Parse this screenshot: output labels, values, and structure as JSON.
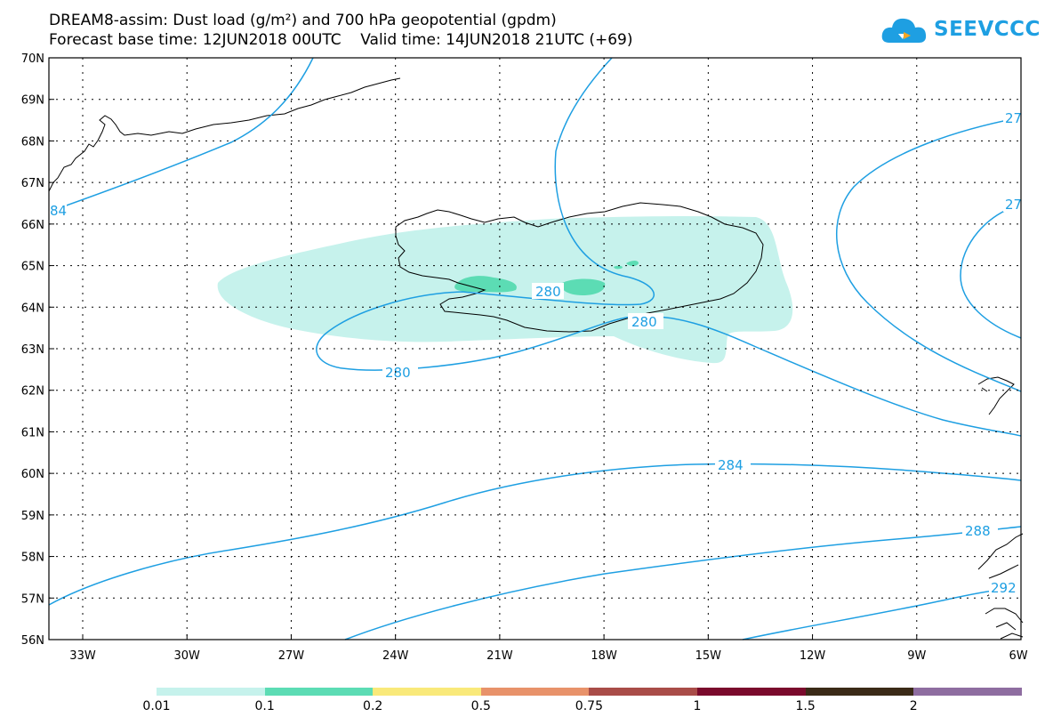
{
  "title": {
    "line1": "DREAM8-assim: Dust load (g/m²) and 700 hPa geopotential (gpdm)",
    "line2": "Forecast base time: 12JUN2018 00UTC    Valid time: 14JUN2018 21UTC (+69)"
  },
  "logo": {
    "text": "SEEVCCC",
    "icon": "cloud-icon",
    "color": "#1e9fe2"
  },
  "map": {
    "lat_labels": [
      "70N",
      "69N",
      "68N",
      "67N",
      "66N",
      "65N",
      "64N",
      "63N",
      "62N",
      "61N",
      "60N",
      "59N",
      "58N",
      "57N",
      "56N"
    ],
    "lon_labels": [
      "33W",
      "30W",
      "27W",
      "24W",
      "21W",
      "18W",
      "15W",
      "12W",
      "9W",
      "6W"
    ],
    "contour_labels": [
      {
        "id": "c280a",
        "text": "280"
      },
      {
        "id": "c280b",
        "text": "280"
      },
      {
        "id": "c280c",
        "text": "280"
      },
      {
        "id": "c284a",
        "text": "284"
      },
      {
        "id": "c284b",
        "text": "84"
      },
      {
        "id": "c288a",
        "text": "288"
      },
      {
        "id": "c27a",
        "text": "27"
      },
      {
        "id": "c27b",
        "text": "27"
      },
      {
        "id": "c292",
        "text": "292"
      }
    ],
    "contour_color": "#1e9fe2",
    "coast_color": "#000000"
  },
  "colorbar": {
    "colors": [
      "#c6f2ec",
      "#5cdcb4",
      "#f9e97a",
      "#e8926a",
      "#a94c48",
      "#7a0a2c",
      "#3a2a17",
      "#8e6da0"
    ],
    "labels": [
      "0.01",
      "0.1",
      "0.2",
      "0.5",
      "0.75",
      "1",
      "1.5",
      "2"
    ]
  }
}
